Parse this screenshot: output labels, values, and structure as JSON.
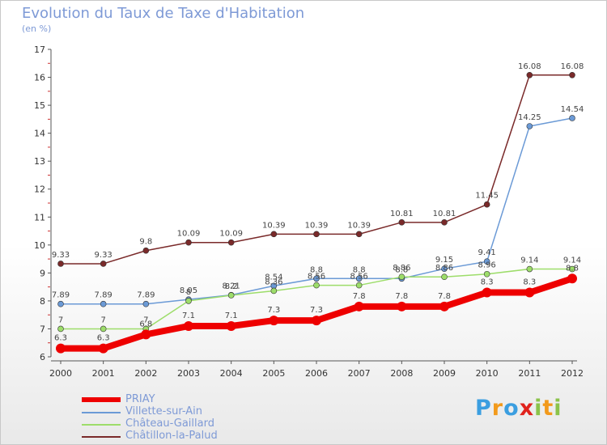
{
  "colors": {
    "PRIAY": "#ee0000",
    "Villette-sur-Ain": "#6b9ad6",
    "Château-Gaillard": "#9ddd6a",
    "Châtillon-la-Palud": "#7a2a2a"
  },
  "chart_data": {
    "type": "line",
    "title": "Evolution du Taux de Taxe d'Habitation",
    "subtitle": "(en %)",
    "x": [
      "2000",
      "2001",
      "2002",
      "2003",
      "2004",
      "2005",
      "2006",
      "2007",
      "2008",
      "2009",
      "2010",
      "2011",
      "2012"
    ],
    "ylim": [
      6,
      17
    ],
    "yticks": [
      6,
      7,
      8,
      9,
      10,
      11,
      12,
      13,
      14,
      15,
      16,
      17
    ],
    "series": [
      {
        "name": "Châtillon-la-Palud",
        "values": [
          9.33,
          9.33,
          9.8,
          10.09,
          10.09,
          10.39,
          10.39,
          10.39,
          10.81,
          10.81,
          11.45,
          16.08,
          16.08
        ],
        "labels": [
          "9.33",
          "9.33",
          "9.8",
          "10.09",
          "10.09",
          "10.39",
          "10.39",
          "10.39",
          "10.81",
          "10.81",
          "11.45",
          "16.08",
          "16.08"
        ]
      },
      {
        "name": "Villette-sur-Ain",
        "values": [
          7.89,
          7.89,
          7.89,
          8.05,
          8.21,
          8.54,
          8.8,
          8.8,
          8.8,
          9.15,
          9.41,
          14.25,
          14.54
        ],
        "labels": [
          "7.89",
          "7.89",
          "7.89",
          "8.05",
          "8.21",
          "8.54",
          "8.8",
          "8.8",
          "8.8",
          "9.15",
          "9.41",
          "14.25",
          "14.54"
        ]
      },
      {
        "name": "Château-Gaillard",
        "values": [
          7,
          7,
          7,
          8,
          8.2,
          8.36,
          8.56,
          8.56,
          8.86,
          8.86,
          8.96,
          9.14,
          9.14
        ],
        "labels": [
          "7",
          "7",
          "7",
          "8",
          "8.2",
          "8.36",
          "8.56",
          "8.56",
          "8.86",
          "8.86",
          "8.96",
          "9.14",
          "9.14"
        ]
      },
      {
        "name": "PRIAY",
        "values": [
          6.3,
          6.3,
          6.8,
          7.1,
          7.1,
          7.3,
          7.3,
          7.8,
          7.8,
          7.8,
          8.3,
          8.3,
          8.8
        ],
        "labels": [
          "6.3",
          "6.3",
          "6.8",
          "7.1",
          "7.1",
          "7.3",
          "7.3",
          "7.8",
          "7.8",
          "7.8",
          "8.3",
          "8.3",
          "8.8"
        ]
      }
    ],
    "legend": [
      "PRIAY",
      "Villette-sur-Ain",
      "Château-Gaillard",
      "Châtillon-la-Palud"
    ],
    "legend_position": "bottom-left",
    "grid": false
  },
  "logo": {
    "letters": [
      "P",
      "r",
      "o",
      "x",
      "i",
      "t",
      "i"
    ],
    "colors": [
      "#3b9ee0",
      "#f29a1c",
      "#3b9ee0",
      "#e0221c",
      "#8bc34a",
      "#f29a1c",
      "#8bc34a"
    ]
  }
}
